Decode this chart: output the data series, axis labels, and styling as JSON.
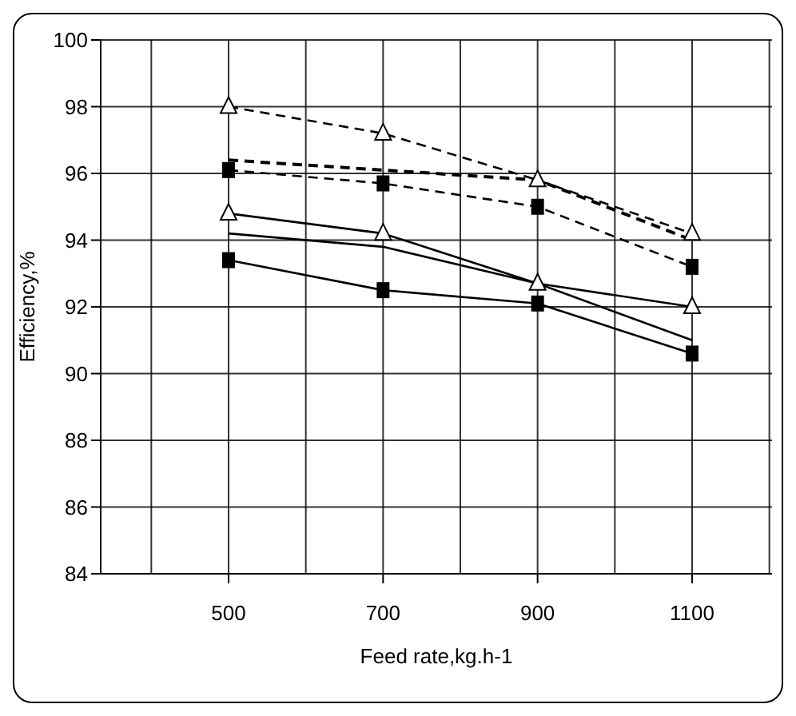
{
  "chart_data": {
    "type": "line",
    "xlabel": "Feed rate,kg.h-1",
    "ylabel": "Efficiency,%",
    "categories": [
      "500",
      "700",
      "900",
      "1100"
    ],
    "series": [
      {
        "color": "#000000",
        "marker": "triangle",
        "line_style": "dashed",
        "values": [
          98.0,
          97.2,
          95.8,
          94.2
        ]
      },
      {
        "color": "#000000",
        "marker": "none",
        "line_style": "dashed",
        "values": [
          96.4,
          96.1,
          95.8,
          94.0
        ]
      },
      {
        "color": "#000000",
        "marker": "square",
        "line_style": "dashed",
        "values": [
          96.1,
          95.7,
          95.0,
          93.2
        ]
      },
      {
        "color": "#000000",
        "marker": "triangle",
        "line_style": "solid",
        "values": [
          94.8,
          94.2,
          92.7,
          92.0
        ]
      },
      {
        "color": "#000000",
        "marker": "none",
        "line_style": "solid",
        "values": [
          94.2,
          93.8,
          92.7,
          91.0
        ]
      },
      {
        "color": "#000000",
        "marker": "square",
        "line_style": "solid",
        "values": [
          93.4,
          92.5,
          92.1,
          90.6
        ]
      }
    ],
    "ylim": [
      84,
      100
    ],
    "yticks": [
      84,
      86,
      88,
      90,
      92,
      94,
      96,
      98,
      100
    ],
    "grid": true,
    "legend": false
  }
}
